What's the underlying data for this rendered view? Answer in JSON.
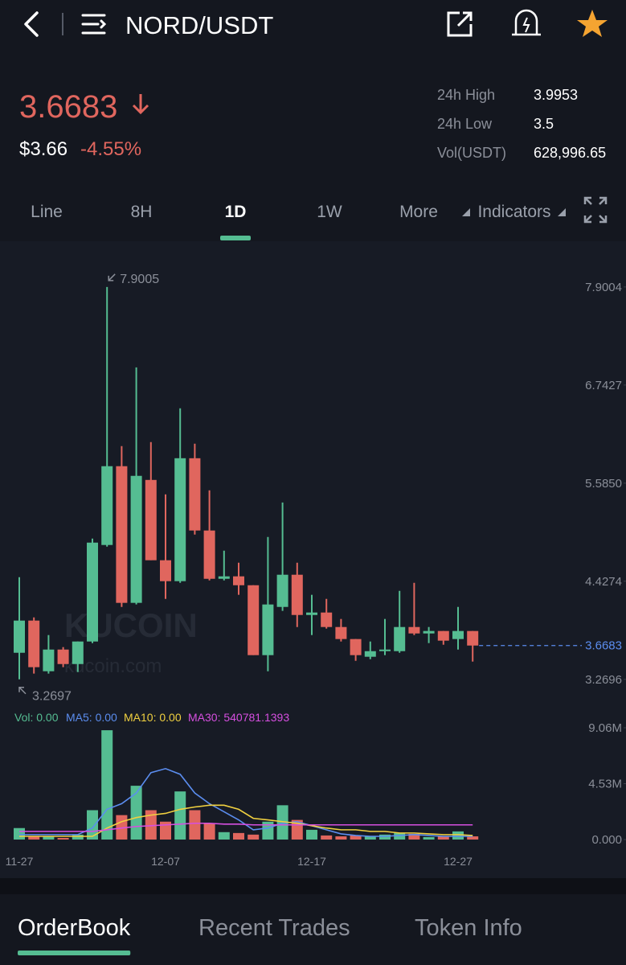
{
  "header": {
    "title": "NORD/USDT"
  },
  "price": {
    "last": "3.6683",
    "usd": "$3.66",
    "change": "-4.55%"
  },
  "stats": [
    {
      "label": "24h High",
      "value": "3.9953"
    },
    {
      "label": "24h Low",
      "value": "3.5"
    },
    {
      "label": "Vol(USDT)",
      "value": "628,996.65"
    }
  ],
  "tabs": [
    "Line",
    "8H",
    "1D",
    "1W",
    "More",
    "Indicators"
  ],
  "active_tab": 2,
  "watermark": [
    "KUCOIN",
    "kucoin.com"
  ],
  "chart_data": {
    "type": "candlestick",
    "categories": [
      "11-27",
      null,
      null,
      null,
      null,
      null,
      null,
      null,
      null,
      null,
      "12-07",
      null,
      null,
      null,
      null,
      null,
      null,
      null,
      null,
      null,
      "12-17",
      null,
      null,
      null,
      null,
      null,
      null,
      null,
      null,
      null,
      "12-27",
      null
    ],
    "open": [
      3.583,
      3.963,
      3.365,
      3.621,
      3.45,
      3.716,
      4.855,
      5.785,
      4.172,
      5.623,
      4.675,
      4.428,
      5.879,
      5.026,
      4.456,
      4.485,
      4.38,
      3.555,
      4.124,
      4.504,
      4.029,
      4.058,
      3.887,
      3.745,
      3.536,
      3.602,
      3.602,
      3.887,
      3.811,
      3.84,
      3.745,
      3.84
    ],
    "high": [
      4.475,
      4.001,
      3.792,
      3.65,
      3.716,
      4.931,
      7.9005,
      6.022,
      6.951,
      6.069,
      5.452,
      6.468,
      6.05,
      5.5,
      4.788,
      4.646,
      4.38,
      4.95,
      5.357,
      4.646,
      4.267,
      4.219,
      3.982,
      3.745,
      3.716,
      3.982,
      4.314,
      4.409,
      3.887,
      3.84,
      4.124,
      3.84
    ],
    "low": [
      3.2697,
      3.337,
      3.337,
      3.413,
      3.356,
      3.697,
      4.836,
      4.124,
      4.153,
      4.675,
      4.219,
      4.409,
      4.978,
      4.437,
      4.437,
      4.267,
      3.555,
      3.365,
      4.077,
      3.887,
      3.792,
      3.868,
      3.716,
      3.488,
      3.507,
      3.555,
      3.583,
      3.792,
      3.697,
      3.678,
      3.621,
      3.479
    ],
    "close": [
      3.963,
      3.413,
      3.621,
      3.45,
      3.716,
      4.883,
      5.785,
      4.172,
      5.671,
      4.675,
      4.428,
      5.879,
      5.026,
      4.456,
      4.485,
      4.38,
      3.555,
      4.153,
      4.504,
      4.029,
      4.058,
      3.887,
      3.745,
      3.555,
      3.602,
      3.621,
      3.887,
      3.811,
      3.84,
      3.726,
      3.84,
      3.6683
    ],
    "ylim": [
      3.03,
      8.25
    ],
    "yticks": [
      7.9004,
      6.7427,
      {
        "value": 5.585,
        "label": "5.5850"
      },
      4.4274,
      3.2696
    ],
    "grid": false,
    "up_color": "#55bd92",
    "down_color": "#e0665e",
    "last_price_color": "#5b8def",
    "volume": {
      "legend": "Vol: 0.00",
      "legend_color": "#55bd92",
      "values": [
        0.93,
        0.26,
        0.26,
        0.13,
        0.4,
        2.38,
        8.86,
        1.98,
        4.36,
        2.38,
        1.45,
        3.9,
        2.38,
        1.32,
        0.6,
        0.53,
        0.4,
        1.45,
        2.78,
        1.59,
        0.79,
        0.33,
        0.26,
        0.33,
        0.26,
        0.4,
        0.53,
        0.46,
        0.2,
        0.26,
        0.66,
        0.26
      ],
      "ylim": [
        0,
        9.06
      ],
      "yticks": [
        {
          "value": 9.06,
          "label": "9.06M"
        },
        {
          "value": 4.53,
          "label": "4.53M"
        },
        {
          "value": 0,
          "label": "0.000"
        }
      ],
      "series": [
        {
          "name": "MA5: 0.00",
          "color": "#5b8def",
          "values": [
            0.4,
            0.4,
            0.4,
            0.4,
            0.4,
            0.93,
            2.45,
            2.91,
            3.77,
            5.42,
            5.75,
            5.29,
            3.77,
            2.91,
            2.25,
            1.59,
            0.79,
            0.93,
            1.32,
            1.45,
            1.12,
            0.79,
            0.46,
            0.33,
            0.26,
            0.26,
            0.33,
            0.4,
            0.33,
            0.26,
            0.26,
            0.26
          ]
        },
        {
          "name": "MA10: 0.00",
          "color": "#f0d040",
          "values": [
            0.26,
            0.26,
            0.26,
            0.26,
            0.26,
            0.26,
            0.93,
            1.45,
            1.78,
            1.98,
            2.12,
            2.45,
            2.64,
            2.78,
            2.78,
            2.45,
            1.72,
            1.59,
            1.45,
            1.32,
            1.12,
            0.93,
            0.79,
            0.79,
            0.66,
            0.66,
            0.53,
            0.53,
            0.46,
            0.4,
            0.4,
            0.33
          ]
        },
        {
          "name": "MA30: 540781.1393",
          "color": "#d64fe0",
          "values": [
            0.66,
            0.66,
            0.66,
            0.66,
            0.66,
            0.66,
            0.79,
            0.93,
            1.06,
            1.12,
            1.19,
            1.25,
            1.32,
            1.32,
            1.25,
            1.25,
            1.19,
            1.19,
            1.19,
            1.19,
            1.19,
            1.19,
            1.19,
            1.19,
            1.19,
            1.19,
            1.19,
            1.19,
            1.19,
            1.19,
            1.19,
            1.19
          ]
        }
      ]
    }
  },
  "bottom_tabs": [
    "OrderBook",
    "Recent Trades",
    "Token Info"
  ],
  "active_bottom_tab": 0
}
